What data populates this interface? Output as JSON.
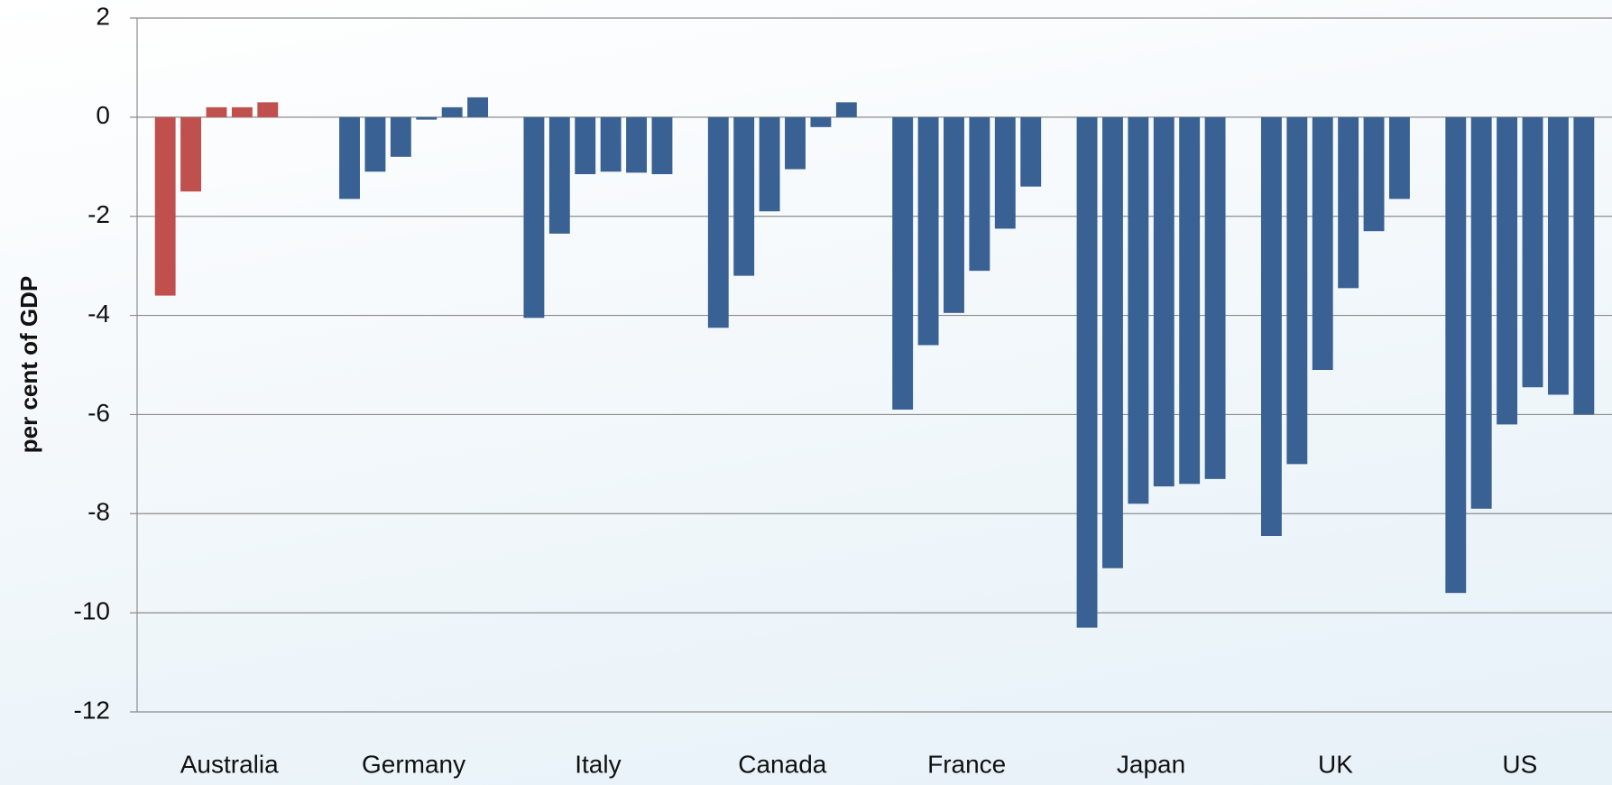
{
  "chart_data": {
    "type": "bar",
    "y_label": "per cent of GDP",
    "categories": [
      "Australia",
      "Germany",
      "Italy",
      "Canada",
      "France",
      "Japan",
      "UK",
      "US"
    ],
    "category_colors": [
      "#c0504d",
      "#3a6193",
      "#3a6193",
      "#3a6193",
      "#3a6193",
      "#3a6193",
      "#3a6193",
      "#3a6193"
    ],
    "series": [
      {
        "values": [
          -3.6,
          -1.65,
          -4.05,
          -4.25,
          -5.9,
          -10.3,
          -8.45,
          -9.6
        ]
      },
      {
        "values": [
          -1.5,
          -1.1,
          -2.35,
          -3.2,
          -4.6,
          -9.1,
          -7.0,
          -7.9
        ]
      },
      {
        "values": [
          0.2,
          -0.8,
          -1.15,
          -1.9,
          -3.95,
          -7.8,
          -5.1,
          -6.2
        ]
      },
      {
        "values": [
          0.2,
          -0.05,
          -1.1,
          -1.05,
          -3.1,
          -7.45,
          -3.45,
          -5.45
        ]
      },
      {
        "values": [
          0.3,
          0.2,
          -1.12,
          -0.2,
          -2.25,
          -7.4,
          -2.3,
          -5.6
        ]
      },
      {
        "values": [
          null,
          0.4,
          -1.15,
          0.3,
          -1.4,
          -7.3,
          -1.65,
          -6.0
        ]
      }
    ],
    "ylim": [
      -12,
      2
    ],
    "yticks": [
      -12,
      -10,
      -8,
      -6,
      -4,
      -2,
      0,
      2
    ],
    "grid": true
  }
}
